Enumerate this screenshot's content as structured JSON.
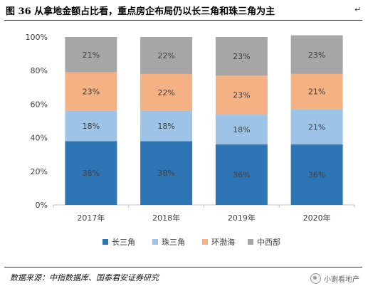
{
  "header": {
    "title": "图 36 从拿地金额占比看，重点房企布局仍以长三角和珠三角为主"
  },
  "footer": {
    "source": "数据来源：中指数据库、国泰君安证券研究",
    "watermark": "小谢看地产"
  },
  "chart_data": {
    "type": "bar",
    "stacked": true,
    "categories": [
      "2017年",
      "2018年",
      "2019年",
      "2020年"
    ],
    "series": [
      {
        "name": "长三角",
        "color": "#2e75b6",
        "values": [
          38,
          38,
          36,
          36
        ],
        "labels": [
          "38%",
          "38%",
          "36%",
          "36%"
        ]
      },
      {
        "name": "珠三角",
        "color": "#9dc3e6",
        "values": [
          18,
          18,
          18,
          21
        ],
        "labels": [
          "18%",
          "18%",
          "18%",
          "21%"
        ]
      },
      {
        "name": "环渤海",
        "color": "#f4b183",
        "values": [
          23,
          22,
          23,
          21
        ],
        "labels": [
          "23%",
          "22%",
          "23%",
          "21%"
        ]
      },
      {
        "name": "中西部",
        "color": "#a6a6a6",
        "values": [
          21,
          22,
          23,
          23
        ],
        "labels": [
          "21%",
          "22%",
          "23%",
          "23%"
        ]
      }
    ],
    "y_ticks": [
      "0%",
      "20%",
      "40%",
      "60%",
      "80%",
      "100%"
    ],
    "ylim": [
      0,
      100
    ],
    "grid": false,
    "legend_position": "bottom"
  }
}
